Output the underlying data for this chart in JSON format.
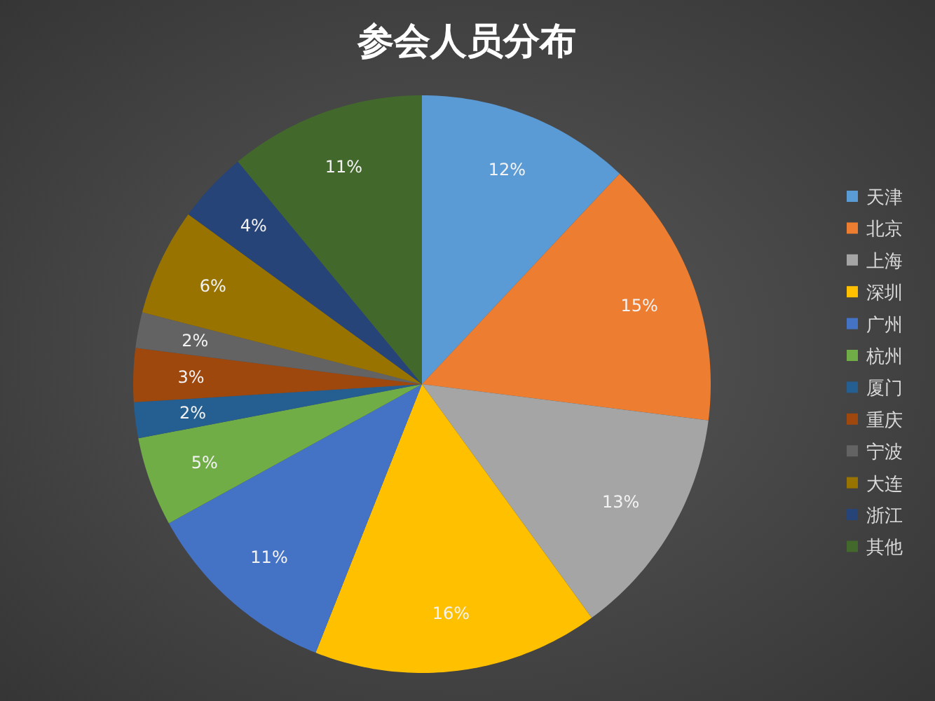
{
  "chart_data": {
    "type": "pie",
    "title": "参会人员分布",
    "categories": [
      "天津",
      "北京",
      "上海",
      "深圳",
      "广州",
      "杭州",
      "厦门",
      "重庆",
      "宁波",
      "大连",
      "浙江",
      "其他"
    ],
    "values": [
      12,
      15,
      13,
      16,
      11,
      5,
      2,
      3,
      2,
      6,
      4,
      11
    ],
    "colors": [
      "#5b9bd5",
      "#ed7d31",
      "#a5a5a5",
      "#ffc000",
      "#4472c4",
      "#70ad47",
      "#255e91",
      "#9e480e",
      "#636363",
      "#997300",
      "#264478",
      "#43682b"
    ],
    "value_labels": [
      "12%",
      "15%",
      "13%",
      "16%",
      "11%",
      "5%",
      "2%",
      "3%",
      "2%",
      "6%",
      "4%",
      "11%"
    ],
    "legend": "right"
  }
}
